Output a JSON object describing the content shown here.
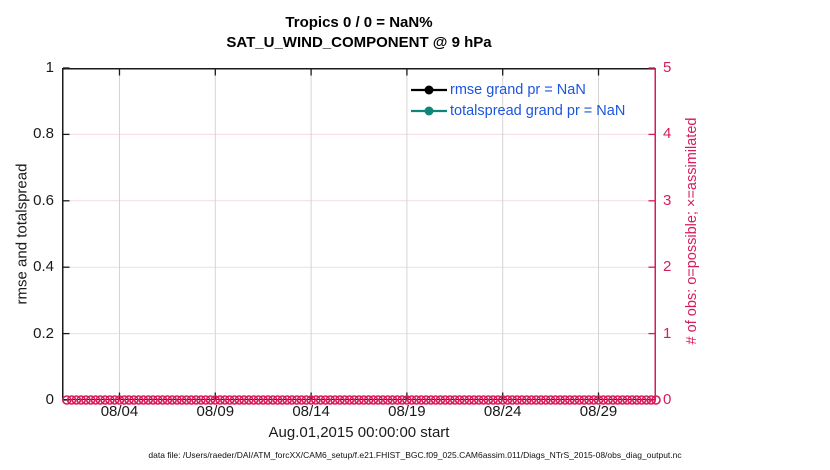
{
  "figure": {
    "title_line1": "Tropics 0 / 0 = NaN%",
    "title_line2": "SAT_U_WIND_COMPONENT @ 9 hPa",
    "footer": "data file: /Users/raeder/DAI/ATM_forcXX/CAM6_setup/f.e21.FHIST_BGC.f09_025.CAM6assim.011/Diags_NTrS_2015-08/obs_diag_output.nc"
  },
  "colors": {
    "accent_pink": "#d81b5d",
    "grid_pink": "#f7d9e5",
    "grid_gray": "#d4d4d4",
    "axis_dark": "#1a1a1a",
    "legend_blue": "#1b55e0",
    "teal": "#0e8779",
    "black": "#000000"
  },
  "chart_data": {
    "type": "line",
    "title": [
      "Tropics 0 / 0 = NaN%",
      "SAT_U_WIND_COMPONENT @ 9 hPa"
    ],
    "xlabel": "Aug.01,2015 00:00:00 start",
    "ylabel_left": "rmse and totalspread",
    "ylabel_right": "# of obs: o=possible; ×=assimilated",
    "grid": true,
    "legend_position": "top-right-inside",
    "x_axis": {
      "start_day": 0,
      "end_day": 31,
      "tick_days": [
        3,
        8,
        13,
        18,
        23,
        28
      ],
      "tick_labels": [
        "08/04",
        "08/09",
        "08/14",
        "08/19",
        "08/24",
        "08/29"
      ]
    },
    "y_axis_left": {
      "min": 0,
      "max": 1,
      "ticks": [
        0,
        0.2,
        0.4,
        0.6,
        0.8,
        1
      ],
      "tick_labels": [
        "0",
        "0.2",
        "0.4",
        "0.6",
        "0.8",
        "1"
      ]
    },
    "y_axis_right": {
      "min": 0,
      "max": 5,
      "ticks": [
        0,
        1,
        2,
        3,
        4,
        5
      ],
      "tick_labels": [
        "0",
        "1",
        "2",
        "3",
        "4",
        "5"
      ]
    },
    "series": [
      {
        "name": "rmse",
        "grand_pr": "NaN",
        "color_key": "black",
        "values": []
      },
      {
        "name": "totalspread",
        "grand_pr": "NaN",
        "color_key": "teal",
        "values": []
      },
      {
        "name": "possible_obs",
        "marker": "o",
        "axis": "right",
        "color_key": "accent_pink",
        "constant_value": 0,
        "time_start_day": 0.25,
        "time_end_day": 31,
        "time_step_day": 0.25
      }
    ],
    "legend": [
      {
        "label": "rmse grand pr = NaN",
        "color_key": "black"
      },
      {
        "label": "totalspread grand pr = NaN",
        "color_key": "teal"
      }
    ]
  }
}
